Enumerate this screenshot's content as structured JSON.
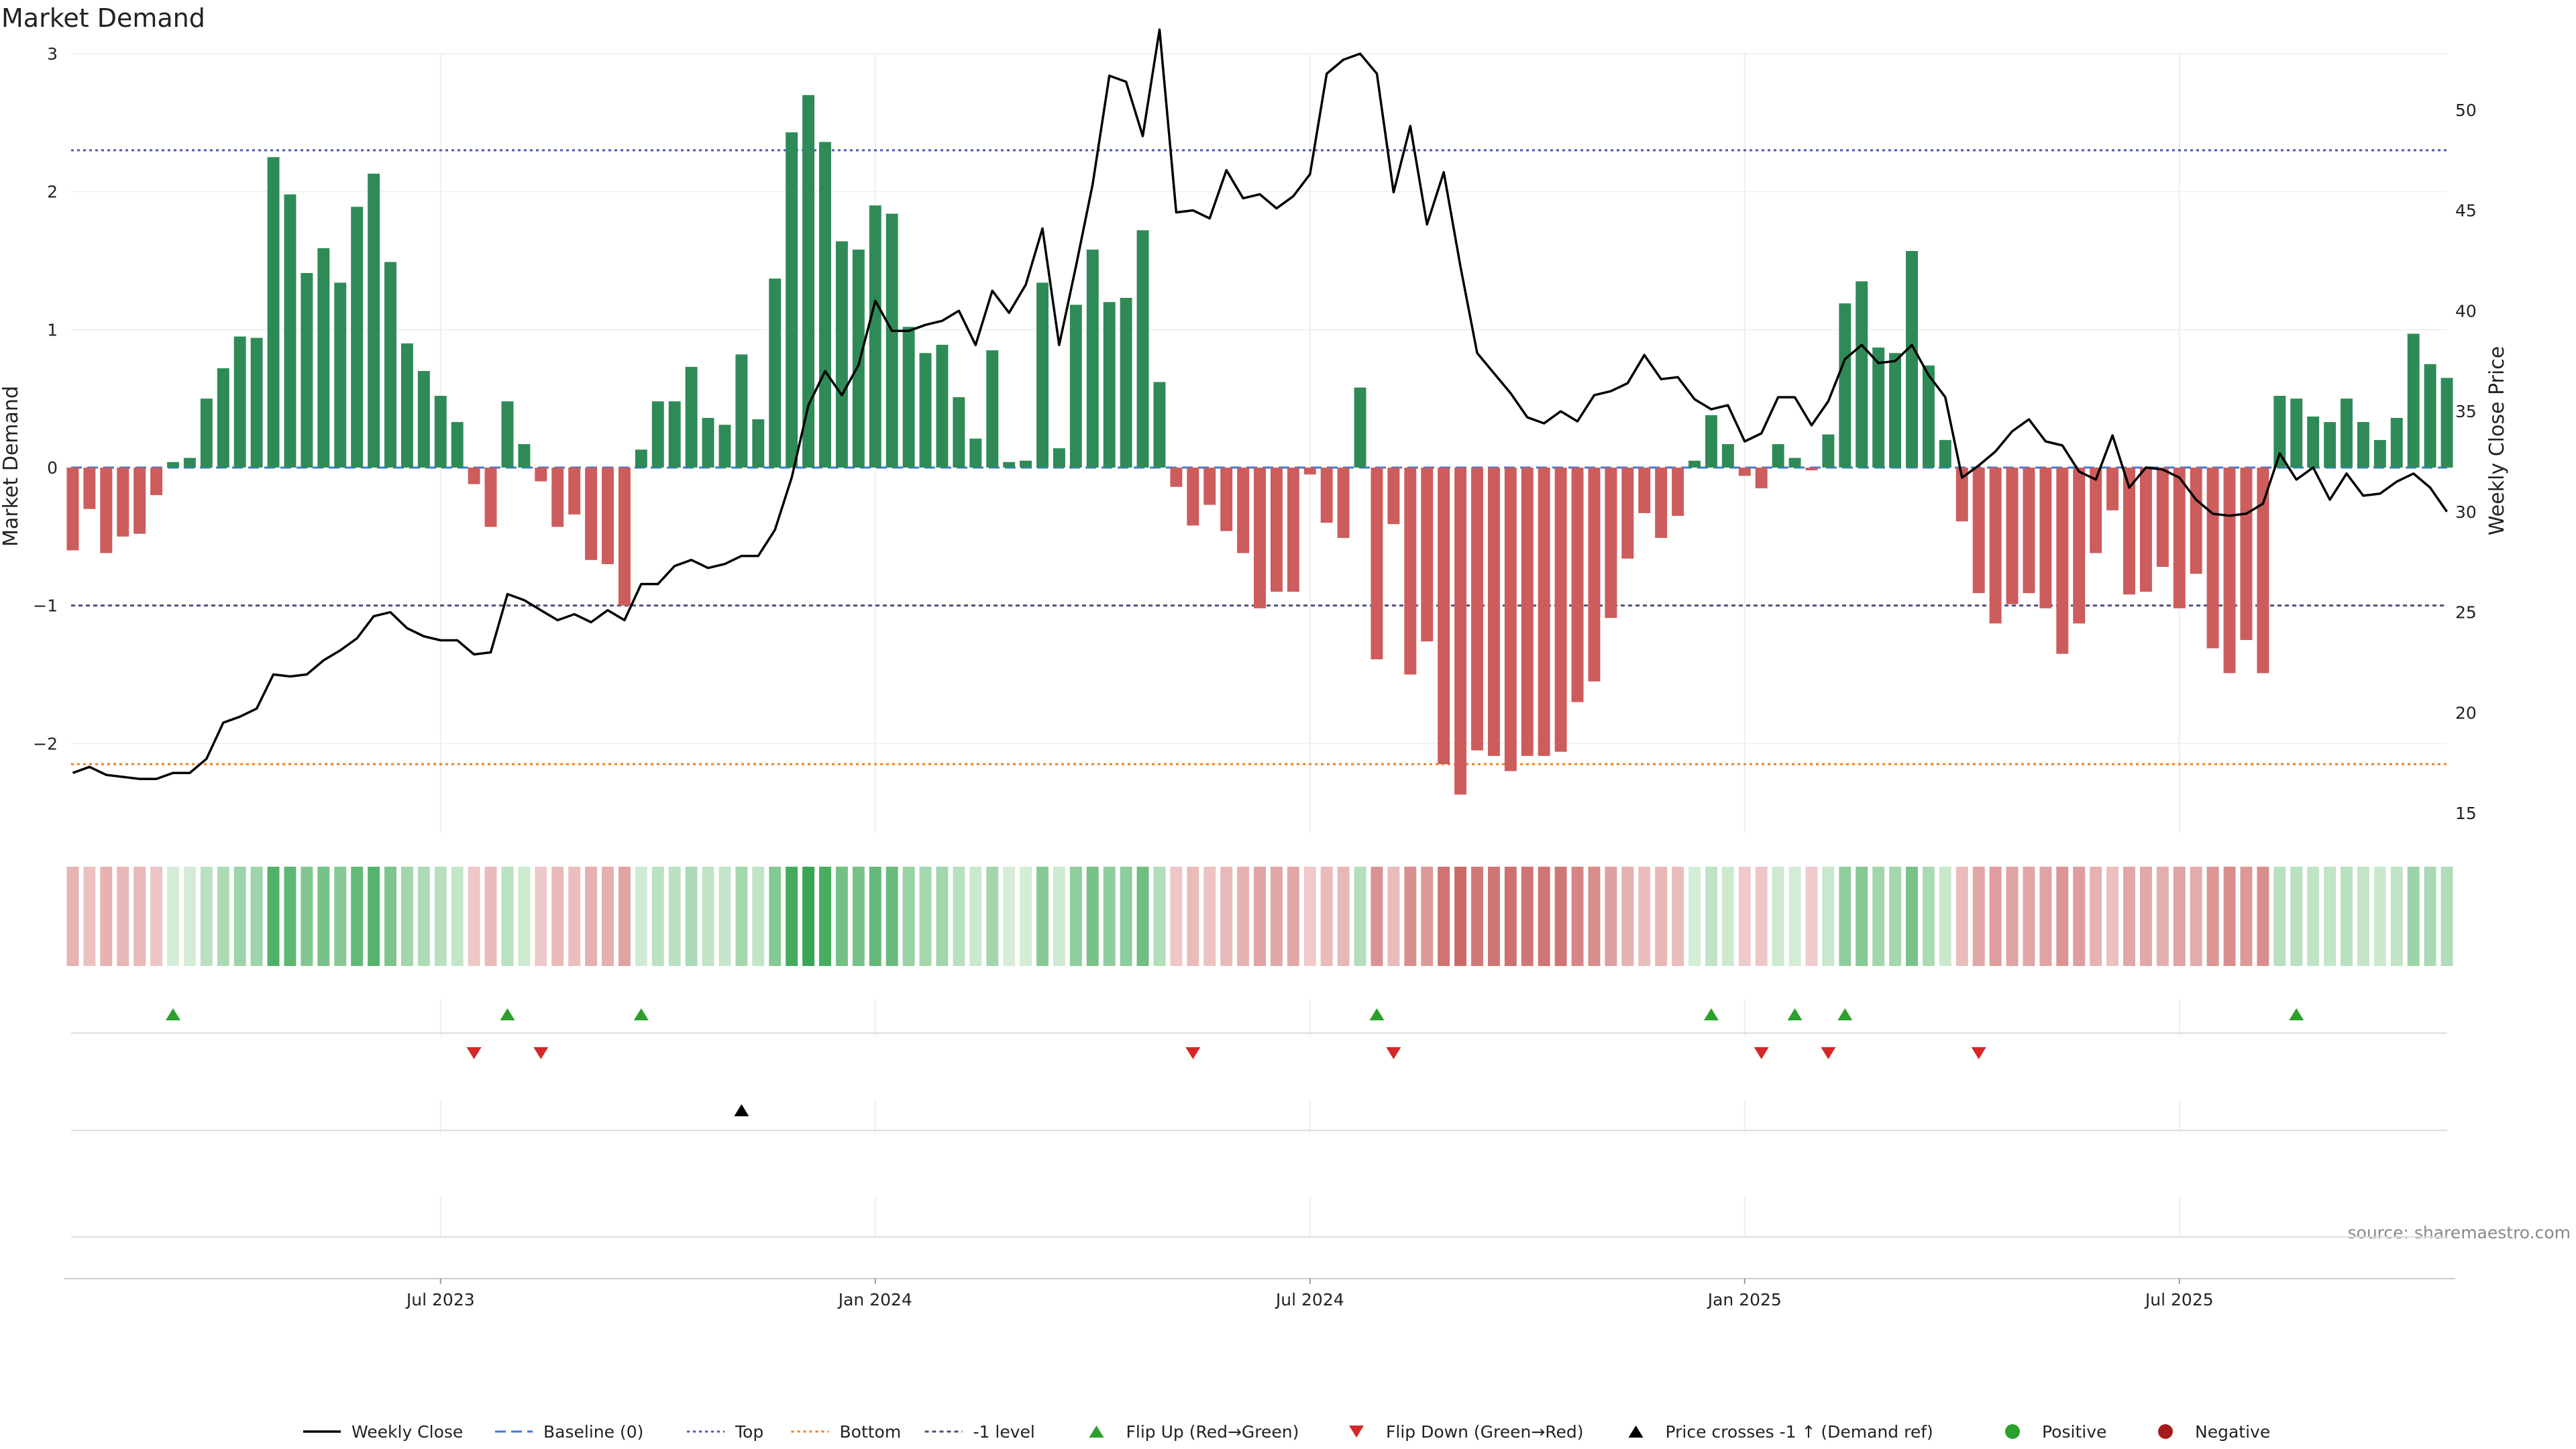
{
  "chart_data": {
    "type": "bar",
    "title": "Market Demand",
    "ylabel_left": "Market Demand",
    "ylabel_right": "Weekly Close Price",
    "ylim_left": [
      -2.65,
      3.0
    ],
    "ylim_right": [
      14.0,
      52.8
    ],
    "left_ticks": [
      {
        "v": 3,
        "label": "3"
      },
      {
        "v": 2,
        "label": "2"
      },
      {
        "v": 1,
        "label": "1"
      },
      {
        "v": 0,
        "label": "0"
      },
      {
        "v": -1,
        "label": "−1"
      },
      {
        "v": -2,
        "label": "−2"
      }
    ],
    "right_ticks": [
      {
        "v": 50,
        "label": "50"
      },
      {
        "v": 45,
        "label": "45"
      },
      {
        "v": 40,
        "label": "40"
      },
      {
        "v": 35,
        "label": "35"
      },
      {
        "v": 30,
        "label": "30"
      },
      {
        "v": 25,
        "label": "25"
      },
      {
        "v": 20,
        "label": "20"
      },
      {
        "v": 15,
        "label": "15"
      }
    ],
    "x_ticks": [
      {
        "index": 22,
        "label": "Jul 2023"
      },
      {
        "index": 48,
        "label": "Jan 2024"
      },
      {
        "index": 74,
        "label": "Jul 2024"
      },
      {
        "index": 100,
        "label": "Jan 2025"
      },
      {
        "index": 126,
        "label": "Jul 2025"
      }
    ],
    "levels": {
      "top": 2.3,
      "bottom": -2.15,
      "minus_one": -1.0,
      "baseline": 0
    },
    "demand": [
      -0.6,
      -0.3,
      -0.62,
      -0.5,
      -0.48,
      -0.2,
      0.04,
      0.07,
      0.5,
      0.72,
      0.95,
      0.94,
      2.25,
      1.98,
      1.41,
      1.59,
      1.34,
      1.89,
      2.13,
      1.49,
      0.9,
      0.7,
      0.52,
      0.33,
      -0.12,
      -0.43,
      0.48,
      0.17,
      -0.1,
      -0.43,
      -0.34,
      -0.67,
      -0.7,
      -1.0,
      0.13,
      0.48,
      0.48,
      0.73,
      0.36,
      0.31,
      0.82,
      0.35,
      1.37,
      2.43,
      2.7,
      2.36,
      1.64,
      1.58,
      1.9,
      1.84,
      1.02,
      0.83,
      0.89,
      0.51,
      0.21,
      0.85,
      0.04,
      0.05,
      1.34,
      0.14,
      1.18,
      1.58,
      1.2,
      1.23,
      1.72,
      0.62,
      -0.14,
      -0.42,
      -0.27,
      -0.46,
      -0.62,
      -1.02,
      -0.9,
      -0.9,
      -0.05,
      -0.4,
      -0.51,
      0.58,
      -1.39,
      -0.41,
      -1.5,
      -1.26,
      -2.15,
      -2.37,
      -2.05,
      -2.09,
      -2.2,
      -2.09,
      -2.09,
      -2.06,
      -1.7,
      -1.55,
      -1.09,
      -0.66,
      -0.33,
      -0.51,
      -0.35,
      0.05,
      0.38,
      0.17,
      -0.06,
      -0.15,
      0.17,
      0.07,
      -0.02,
      0.24,
      1.19,
      1.35,
      0.87,
      0.83,
      1.57,
      0.74,
      0.2,
      -0.39,
      -0.91,
      -1.13,
      -0.99,
      -0.91,
      -1.02,
      -1.35,
      -1.13,
      -0.62,
      -0.31,
      -0.92,
      -0.9,
      -0.72,
      -1.02,
      -0.77,
      -1.31,
      -1.49,
      -1.25,
      -1.49,
      0.52,
      0.5,
      0.37,
      0.33,
      0.5,
      0.33,
      0.2,
      0.36,
      0.97,
      0.75,
      0.65
    ],
    "weekly_close": [
      17.0,
      17.3,
      16.9,
      16.8,
      16.7,
      16.7,
      17.0,
      17.0,
      17.7,
      19.5,
      19.8,
      20.2,
      21.9,
      21.8,
      21.9,
      22.6,
      23.1,
      23.7,
      24.8,
      25.0,
      24.2,
      23.8,
      23.6,
      23.6,
      22.9,
      23.0,
      25.9,
      25.6,
      25.1,
      24.6,
      24.9,
      24.5,
      25.1,
      24.6,
      26.4,
      26.4,
      27.3,
      27.6,
      27.2,
      27.4,
      27.8,
      27.8,
      29.1,
      31.7,
      35.3,
      37.0,
      35.8,
      37.3,
      40.5,
      39.0,
      39.0,
      39.3,
      39.5,
      40.0,
      38.3,
      41.0,
      39.9,
      41.3,
      44.1,
      38.3,
      42.2,
      46.3,
      51.7,
      51.4,
      48.7,
      54.0,
      44.9,
      45.0,
      44.6,
      47.0,
      45.6,
      45.8,
      45.1,
      45.7,
      46.8,
      51.8,
      52.5,
      52.8,
      51.8,
      45.9,
      49.2,
      44.3,
      46.9,
      42.2,
      37.9,
      36.9,
      35.9,
      34.7,
      34.4,
      35.0,
      34.5,
      35.8,
      36.0,
      36.4,
      37.8,
      36.6,
      36.7,
      35.6,
      35.1,
      35.3,
      33.5,
      33.9,
      35.7,
      35.7,
      34.3,
      35.5,
      37.6,
      38.3,
      37.4,
      37.5,
      38.3,
      36.8,
      35.7,
      31.7,
      32.3,
      33.0,
      34.0,
      34.6,
      33.5,
      33.3,
      32.0,
      31.6,
      33.8,
      31.2,
      32.2,
      32.1,
      31.7,
      30.6,
      29.9,
      29.8,
      29.9,
      30.4,
      32.9,
      31.6,
      32.2,
      30.6,
      31.9,
      30.8,
      30.9,
      31.5,
      31.9,
      31.2,
      30.0
    ],
    "flip_up_indices": [
      6,
      26,
      34,
      78,
      98,
      103,
      106,
      133
    ],
    "flip_down_indices": [
      24,
      28,
      67,
      79,
      101,
      105,
      114
    ],
    "price_cross_indices": [
      40
    ],
    "source": "source: sharemaestro.com",
    "legend": [
      "Weekly Close",
      "Baseline (0)",
      "Top",
      "Bottom",
      "-1 level",
      "Flip Up (Red→Green)",
      "Flip Down (Green→Red)",
      "Price crosses -1 ↑ (Demand ref)",
      "Positive",
      "Negative"
    ],
    "colors": {
      "positive": "#2e8b57",
      "negative": "#cd5c5c",
      "price": "#000000",
      "baseline": "#3a7bd5",
      "top": "#5050c0",
      "bottom": "#f08020",
      "minus_one": "#505080",
      "flip_up": "#2ca02c",
      "flip_down": "#d62728",
      "cross": "#000000",
      "dot_positive": "#2ca02c",
      "dot_negative": "#a61c1c"
    }
  }
}
